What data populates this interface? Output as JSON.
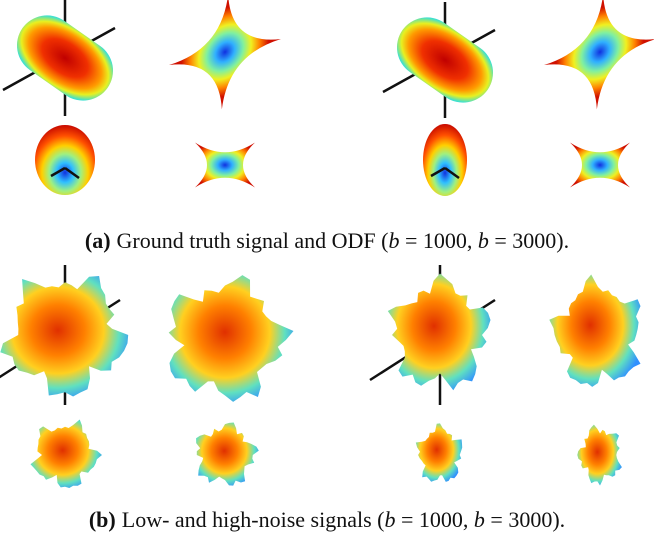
{
  "captions": [
    {
      "label": "(a)",
      "text": "Ground truth signal and ODF (",
      "var1": "b",
      "mid": " = 1000, ",
      "var2": "b",
      "end": " = 3000)."
    },
    {
      "label": "(b)",
      "text": "Low- and high-noise signals (",
      "var1": "b",
      "mid": " = 1000, ",
      "var2": "b",
      "end": " = 3000)."
    }
  ]
}
